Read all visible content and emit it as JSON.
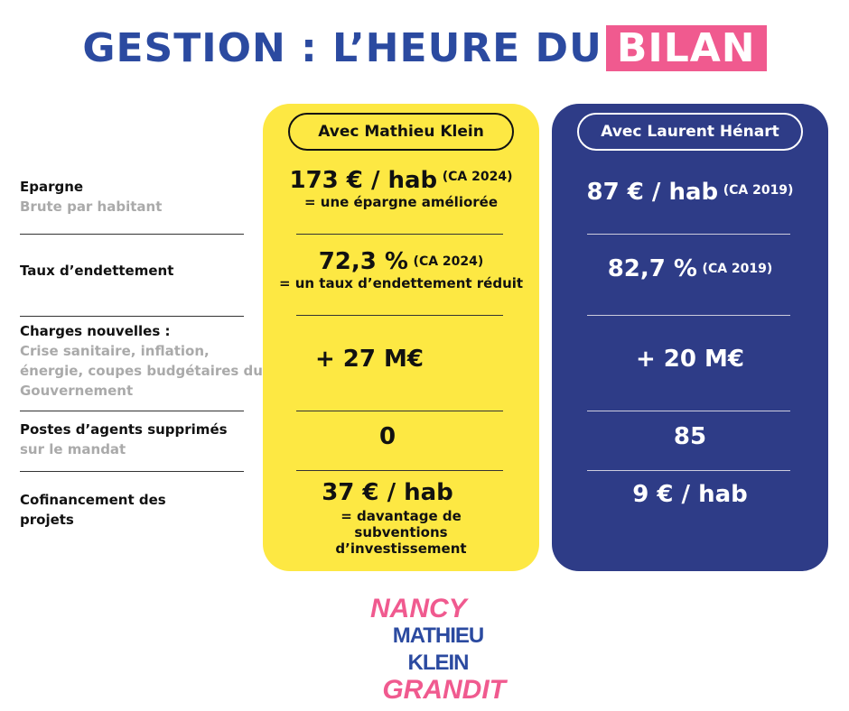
{
  "title": {
    "main": "GESTION : L’HEURE DU",
    "highlight": "BILAN"
  },
  "rows": [
    {
      "label": "Epargne",
      "sub": "Brute par habitant"
    },
    {
      "label": "Taux d’endettement",
      "sub": ""
    },
    {
      "label": "Charges nouvelles :",
      "sub": "Crise sanitaire, inflation, énergie, coupes budgétaires du Gouvernement"
    },
    {
      "label": "Postes d’agents supprimés",
      "sub": "sur le mandat"
    },
    {
      "label": "Cofinancement des projets",
      "sub": ""
    }
  ],
  "klein": {
    "header": "Avec Mathieu Klein",
    "values": [
      {
        "value": "173 € / hab",
        "tag": "(CA 2024)",
        "note": "= une épargne améliorée"
      },
      {
        "value": "72,3 %",
        "tag": "(CA 2024)",
        "note": "= un taux d’endettement réduit"
      },
      {
        "value": "+ 27 M€"
      },
      {
        "value": "0"
      },
      {
        "value": "37 € / hab",
        "note": "= davantage de subventions d’investissement"
      }
    ]
  },
  "henart": {
    "header": "Avec Laurent Hénart",
    "values": [
      {
        "value": "87 € / hab",
        "tag": "(CA 2019)"
      },
      {
        "value": "82,7 %",
        "tag": "(CA 2019)"
      },
      {
        "value": "+ 20 M€"
      },
      {
        "value": "85"
      },
      {
        "value": "9 € / hab"
      }
    ]
  },
  "logo": {
    "line1": "NANCY",
    "line2": "MATHIEU KLEIN",
    "line3": "GRANDIT"
  },
  "colors": {
    "blue": "#2b4aa0",
    "pink": "#f05a8f",
    "yellow": "#fde843",
    "navy": "#2e3c87"
  }
}
